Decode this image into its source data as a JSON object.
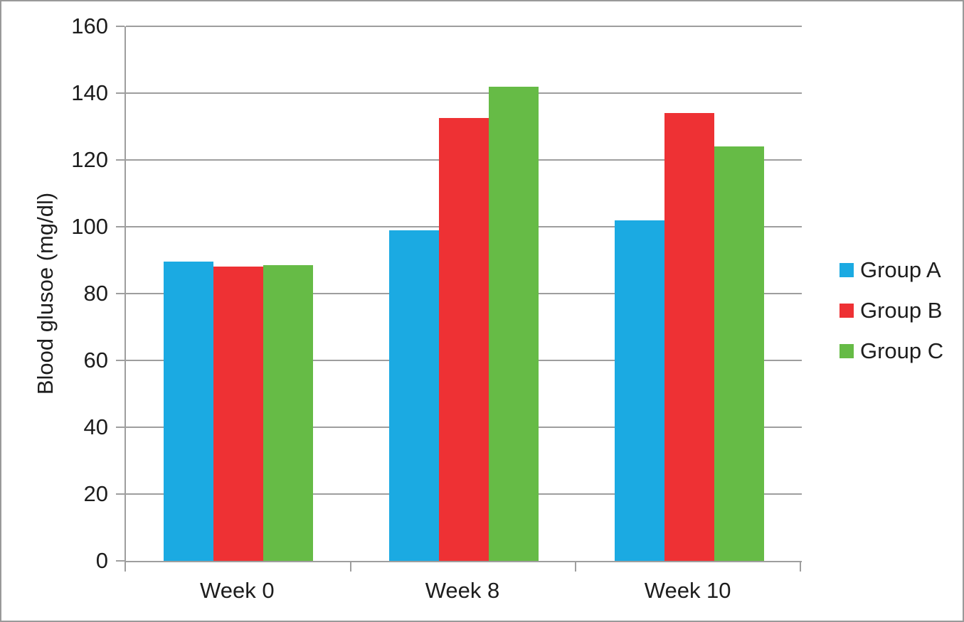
{
  "figure": {
    "background": "#ffffff",
    "border_color": "#999999",
    "axis_color": "#9e9e9e",
    "text_color": "#1d1d1d"
  },
  "chart_data": {
    "type": "bar",
    "title": "",
    "xlabel": "",
    "ylabel": "Blood glusoe (mg/dl)",
    "categories": [
      "Week 0",
      "Week 8",
      "Week 10"
    ],
    "series": [
      {
        "name": "Group A",
        "color": "#1BAAE2",
        "values": [
          89.5,
          99,
          102
        ]
      },
      {
        "name": "Group B",
        "color": "#EE3134",
        "values": [
          88,
          132.5,
          134
        ]
      },
      {
        "name": "Group C",
        "color": "#66BB46",
        "values": [
          88.5,
          142,
          124
        ]
      }
    ],
    "ylim": [
      0,
      160
    ],
    "yticks": [
      0,
      20,
      40,
      60,
      80,
      100,
      120,
      140,
      160
    ],
    "grid": true,
    "legend_position": "right"
  }
}
